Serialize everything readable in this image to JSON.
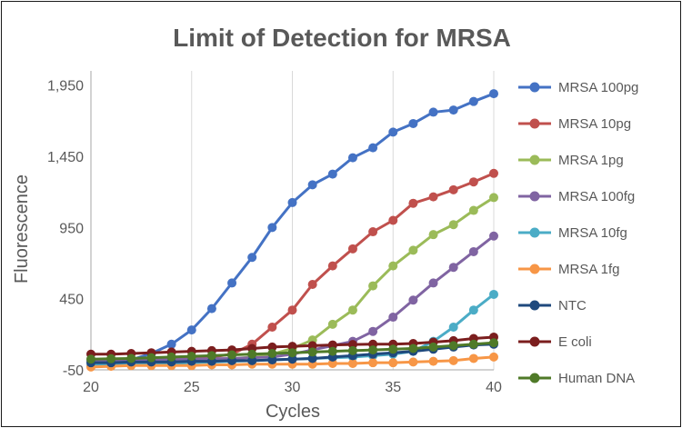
{
  "chart_data": {
    "type": "line",
    "title": "Limit of Detection for MRSA",
    "xlabel": "Cycles",
    "ylabel": "Fluorescence",
    "xlim": [
      20,
      40
    ],
    "ylim": [
      -50,
      2050
    ],
    "x_ticks": [
      20,
      25,
      30,
      35,
      40
    ],
    "y_ticks": [
      -50,
      450,
      950,
      1450,
      1950
    ],
    "x_tick_labels": [
      "20",
      "25",
      "30",
      "35",
      "40"
    ],
    "y_tick_labels": [
      "-50",
      "450",
      "950",
      "1,450",
      "1,950"
    ],
    "grid": "vertical",
    "legend_position": "right",
    "x": [
      20,
      21,
      22,
      23,
      24,
      25,
      26,
      27,
      28,
      29,
      30,
      31,
      32,
      33,
      34,
      35,
      36,
      37,
      38,
      39,
      40
    ],
    "series": [
      {
        "name": "MRSA 100pg",
        "color": "#4472C4",
        "values": [
          10,
          15,
          20,
          65,
          130,
          230,
          380,
          560,
          740,
          950,
          1125,
          1250,
          1325,
          1440,
          1510,
          1620,
          1680,
          1760,
          1775,
          1835,
          1890
        ]
      },
      {
        "name": "MRSA 10pg",
        "color": "#C0504D",
        "values": [
          20,
          20,
          25,
          25,
          30,
          35,
          40,
          60,
          130,
          250,
          370,
          550,
          680,
          800,
          920,
          1000,
          1120,
          1165,
          1215,
          1270,
          1330
        ]
      },
      {
        "name": "MRSA 1pg",
        "color": "#9BBB59",
        "values": [
          10,
          12,
          14,
          16,
          18,
          20,
          24,
          28,
          40,
          60,
          100,
          160,
          270,
          370,
          540,
          680,
          790,
          900,
          970,
          1070,
          1160
        ]
      },
      {
        "name": "MRSA 100fg",
        "color": "#8064A2",
        "values": [
          15,
          15,
          18,
          20,
          22,
          25,
          28,
          30,
          35,
          40,
          60,
          90,
          120,
          150,
          220,
          320,
          440,
          560,
          670,
          780,
          890
        ]
      },
      {
        "name": "MRSA 10fg",
        "color": "#4BACC6",
        "values": [
          -20,
          -15,
          -10,
          -10,
          -5,
          0,
          5,
          10,
          15,
          20,
          25,
          30,
          35,
          40,
          50,
          60,
          80,
          150,
          250,
          370,
          480
        ]
      },
      {
        "name": "MRSA 1fg",
        "color": "#F79646",
        "values": [
          -30,
          -25,
          -20,
          -20,
          -20,
          -20,
          -15,
          -15,
          -10,
          -10,
          -10,
          -10,
          -5,
          -5,
          0,
          0,
          5,
          10,
          15,
          30,
          40
        ]
      },
      {
        "name": "NTC",
        "color": "#1F497D",
        "values": [
          0,
          0,
          5,
          5,
          5,
          10,
          10,
          15,
          15,
          20,
          25,
          30,
          40,
          50,
          60,
          70,
          80,
          95,
          110,
          125,
          130
        ]
      },
      {
        "name": "E coli",
        "color": "#7B1E1E",
        "values": [
          60,
          60,
          65,
          70,
          75,
          80,
          85,
          90,
          100,
          110,
          115,
          120,
          125,
          128,
          130,
          130,
          135,
          145,
          155,
          170,
          180
        ]
      },
      {
        "name": "Human DNA",
        "color": "#4F7A28",
        "values": [
          25,
          28,
          30,
          35,
          40,
          45,
          50,
          55,
          60,
          65,
          70,
          75,
          80,
          85,
          90,
          95,
          100,
          110,
          120,
          130,
          140
        ]
      }
    ]
  }
}
